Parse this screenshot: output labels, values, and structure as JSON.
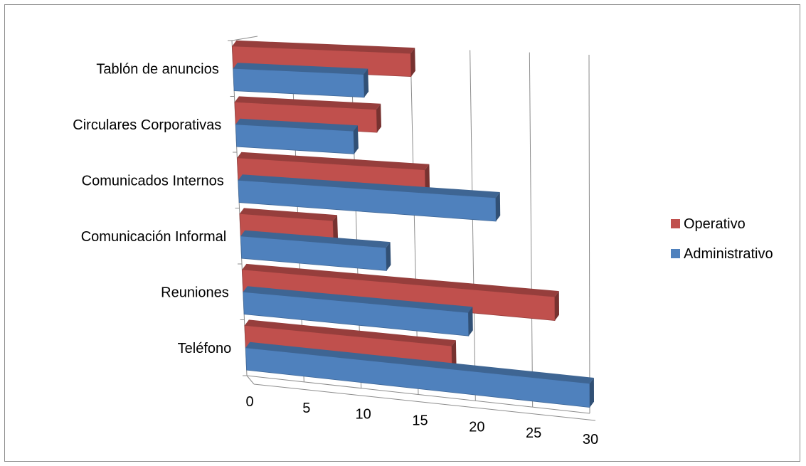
{
  "chart_data": {
    "type": "bar",
    "orientation": "horizontal",
    "style": "3d-clustered",
    "categories": [
      "Teléfono",
      "Reuniones",
      "Comunicación Informal",
      "Comunicados Internos",
      "Circulares Corporativas",
      "Tablón de anuncios"
    ],
    "series": [
      {
        "name": "Administrativo",
        "color": "#4f81bd",
        "values": [
          30,
          19.5,
          12.5,
          22,
          10,
          11
        ]
      },
      {
        "name": "Operativo",
        "color": "#c0504d",
        "values": [
          18,
          27,
          8,
          16,
          12,
          15
        ]
      }
    ],
    "xlim": [
      0,
      30
    ],
    "x_ticks": [
      0,
      5,
      10,
      15,
      20,
      25,
      30
    ],
    "grid": true,
    "legend_position": "right",
    "legend": [
      {
        "name": "Operativo",
        "color": "#c0504d"
      },
      {
        "name": "Administrativo",
        "color": "#4f81bd"
      }
    ]
  }
}
